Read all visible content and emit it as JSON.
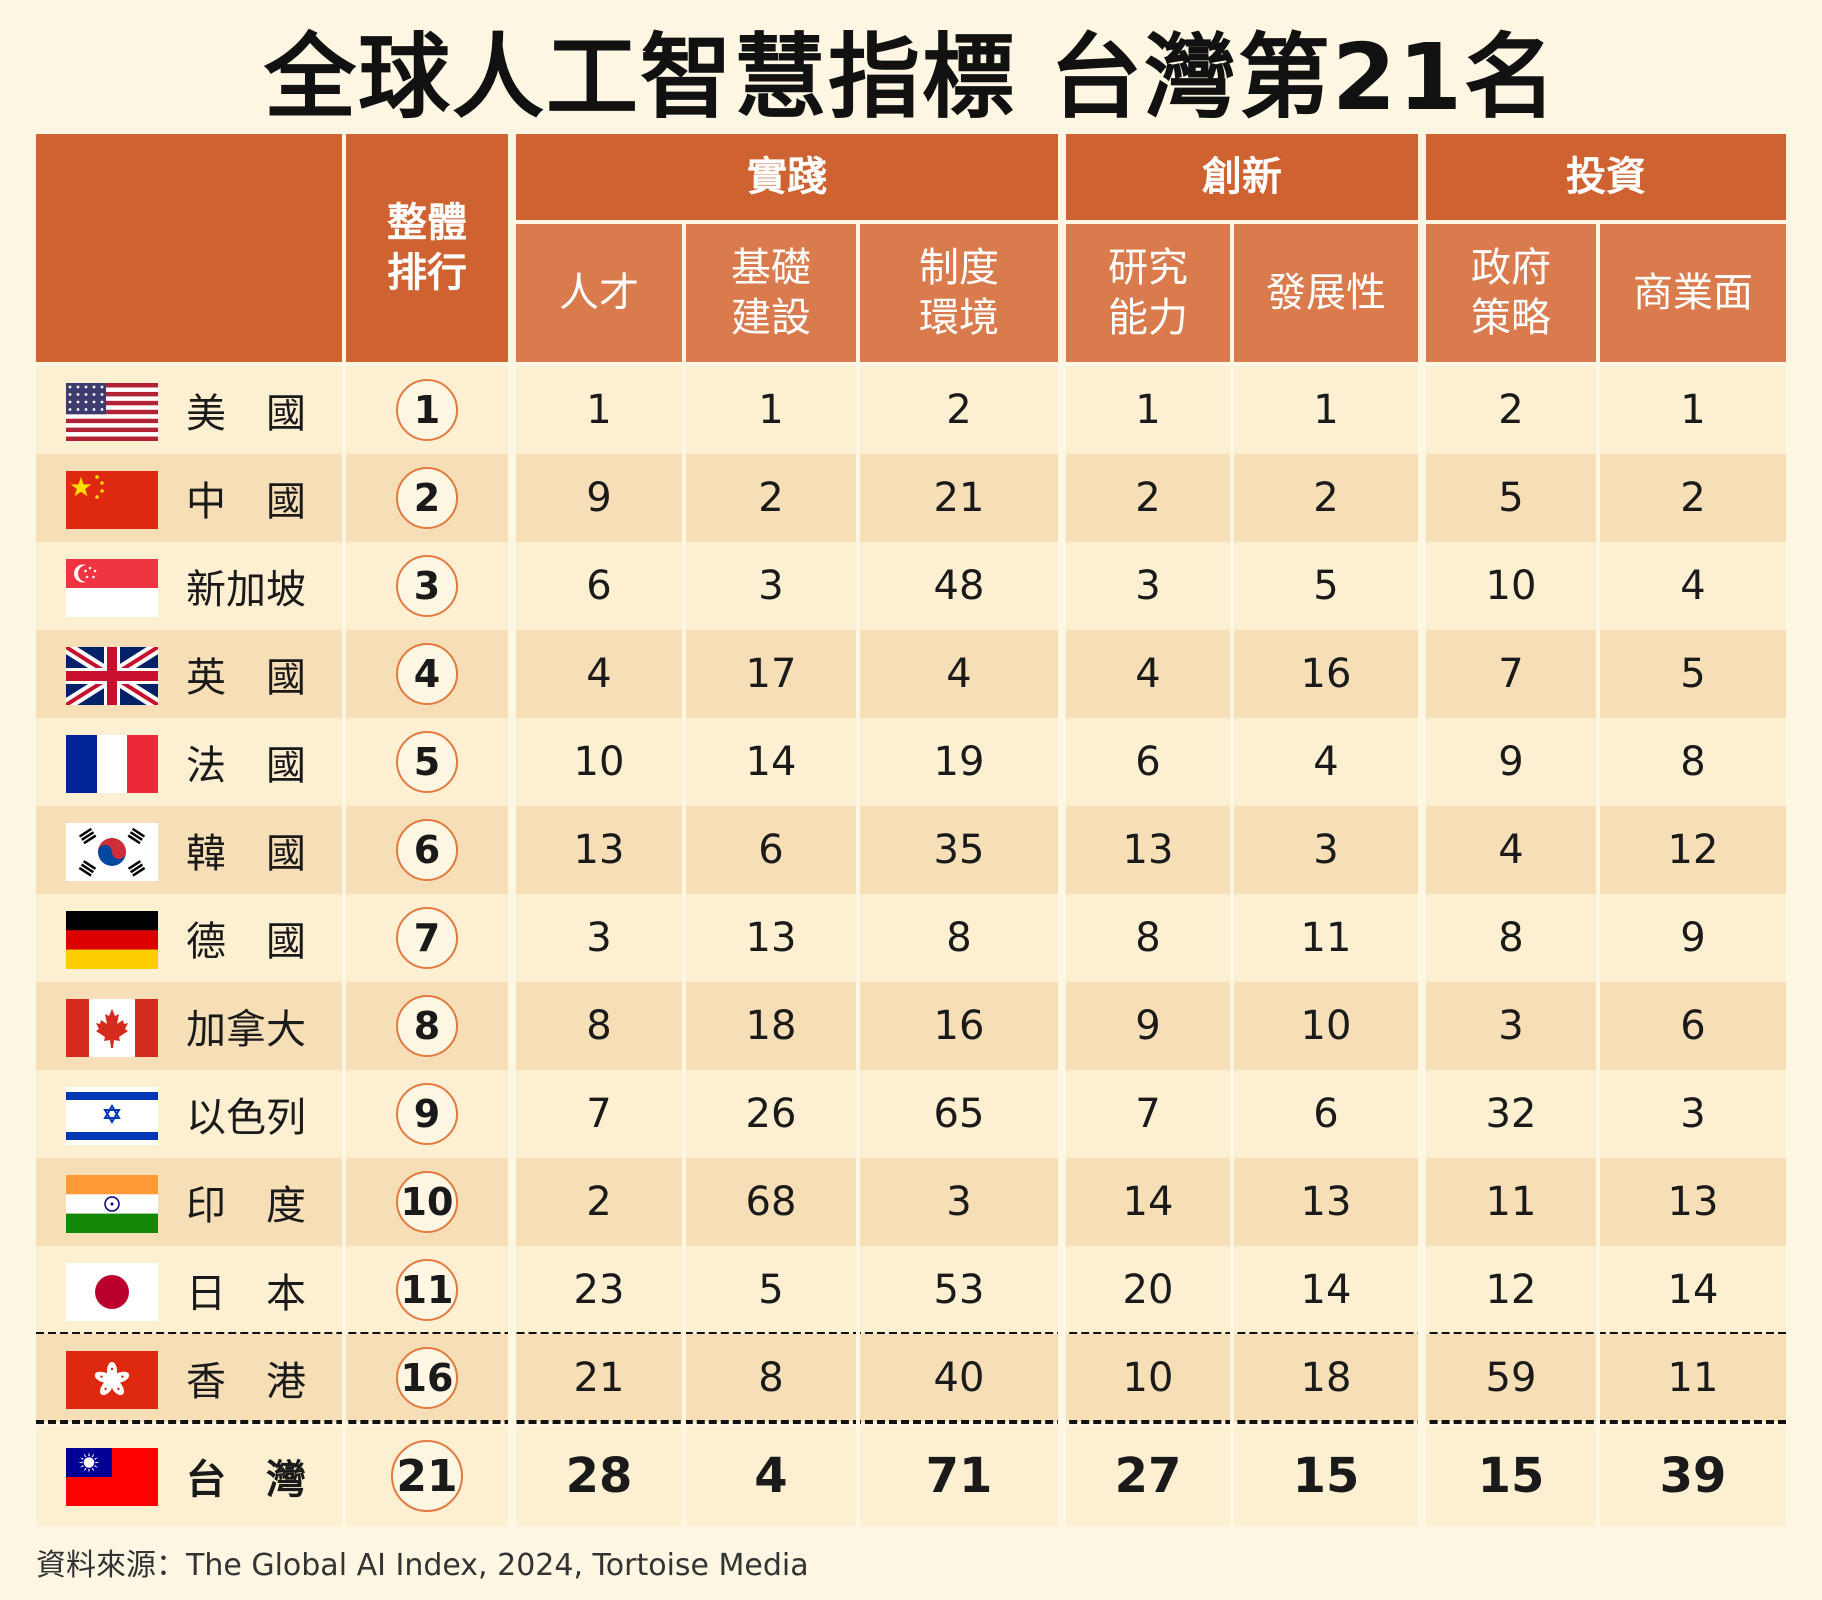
{
  "title": "全球人工智慧指標 台灣第21名",
  "source": "資料來源：The Global AI Index, 2024, Tortoise Media",
  "colors": {
    "header": "#cf6231",
    "subheader": "#d97b4c",
    "row_light": "#fdf0d2",
    "row_dark": "#f6dfb6",
    "circle": "#e07b3f"
  },
  "chart_data": {
    "type": "table",
    "header": {
      "overall": "整體\n排行",
      "groups": [
        {
          "label": "實踐",
          "columns": [
            "人才",
            "基礎\n建設",
            "制度\n環境"
          ]
        },
        {
          "label": "創新",
          "columns": [
            "研究\n能力",
            "發展性"
          ]
        },
        {
          "label": "投資",
          "columns": [
            "政府\n策略",
            "商業面"
          ]
        }
      ]
    },
    "rows": [
      {
        "country": "美　國",
        "flag": "us-flag",
        "rank": "1",
        "values": [
          "1",
          "1",
          "2",
          "1",
          "1",
          "2",
          "1"
        ]
      },
      {
        "country": "中　國",
        "flag": "cn-flag",
        "rank": "2",
        "values": [
          "9",
          "2",
          "21",
          "2",
          "2",
          "5",
          "2"
        ]
      },
      {
        "country": "新加坡",
        "flag": "sg-flag",
        "rank": "3",
        "values": [
          "6",
          "3",
          "48",
          "3",
          "5",
          "10",
          "4"
        ]
      },
      {
        "country": "英　國",
        "flag": "uk-flag",
        "rank": "4",
        "values": [
          "4",
          "17",
          "4",
          "4",
          "16",
          "7",
          "5"
        ]
      },
      {
        "country": "法　國",
        "flag": "fr-flag",
        "rank": "5",
        "values": [
          "10",
          "14",
          "19",
          "6",
          "4",
          "9",
          "8"
        ]
      },
      {
        "country": "韓　國",
        "flag": "kr-flag",
        "rank": "6",
        "values": [
          "13",
          "6",
          "35",
          "13",
          "3",
          "4",
          "12"
        ]
      },
      {
        "country": "德　國",
        "flag": "de-flag",
        "rank": "7",
        "values": [
          "3",
          "13",
          "8",
          "8",
          "11",
          "8",
          "9"
        ]
      },
      {
        "country": "加拿大",
        "flag": "ca-flag",
        "rank": "8",
        "values": [
          "8",
          "18",
          "16",
          "9",
          "10",
          "3",
          "6"
        ]
      },
      {
        "country": "以色列",
        "flag": "il-flag",
        "rank": "9",
        "values": [
          "7",
          "26",
          "65",
          "7",
          "6",
          "32",
          "3"
        ]
      },
      {
        "country": "印　度",
        "flag": "in-flag",
        "rank": "10",
        "values": [
          "2",
          "68",
          "3",
          "14",
          "13",
          "11",
          "13"
        ]
      },
      {
        "country": "日　本",
        "flag": "jp-flag",
        "rank": "11",
        "values": [
          "23",
          "5",
          "53",
          "20",
          "14",
          "12",
          "14"
        ]
      },
      {
        "country": "香　港",
        "flag": "hk-flag",
        "rank": "16",
        "values": [
          "21",
          "8",
          "40",
          "10",
          "18",
          "59",
          "11"
        ]
      },
      {
        "country": "台　灣",
        "flag": "tw-flag",
        "rank": "21",
        "values": [
          "28",
          "4",
          "71",
          "27",
          "15",
          "15",
          "39"
        ]
      }
    ]
  }
}
